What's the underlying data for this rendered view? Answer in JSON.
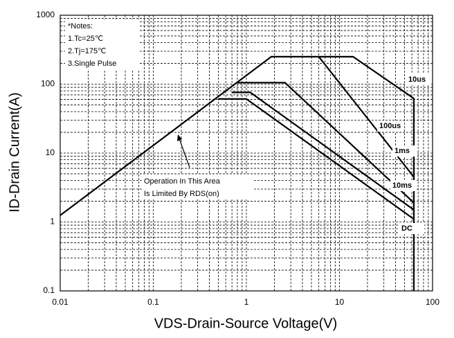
{
  "chart_data": {
    "type": "line",
    "xlabel": "VDS-Drain-Source Voltage(V)",
    "ylabel": "ID-Drain Current(A)",
    "xscale": "log",
    "yscale": "log",
    "xlim": [
      0.01,
      100
    ],
    "ylim": [
      0.1,
      1000
    ],
    "xticks": [
      0.01,
      0.1,
      1,
      10,
      100
    ],
    "yticks": [
      0.1,
      1,
      10,
      100,
      1000
    ],
    "grid": true,
    "notes": [
      "*Notes:",
      "1.Tc=25℃",
      "2.Tj=175℃",
      "3.Single Pulse"
    ],
    "annotation": [
      "Operation In This Area",
      "Is Limited By RDS(on)"
    ],
    "series": [
      {
        "name": "10us",
        "color": "#000000",
        "x": [
          0.01,
          1.85,
          14,
          63,
          63
        ],
        "values": [
          1.25,
          250,
          250,
          62,
          0.1
        ]
      },
      {
        "name": "100us",
        "color": "#000000",
        "x": [
          6,
          63
        ],
        "values": [
          250,
          4.5
        ]
      },
      {
        "name": "1ms",
        "color": "#000000",
        "x": [
          0.8,
          2.6,
          63
        ],
        "values": [
          105,
          105,
          1.9
        ]
      },
      {
        "name": "10ms",
        "color": "#000000",
        "x": [
          0.7,
          1.1,
          63
        ],
        "values": [
          76,
          76,
          1.5
        ]
      },
      {
        "name": "DC",
        "color": "#000000",
        "x": [
          0.5,
          1.0,
          63
        ],
        "values": [
          61,
          61,
          1.1
        ]
      }
    ]
  }
}
